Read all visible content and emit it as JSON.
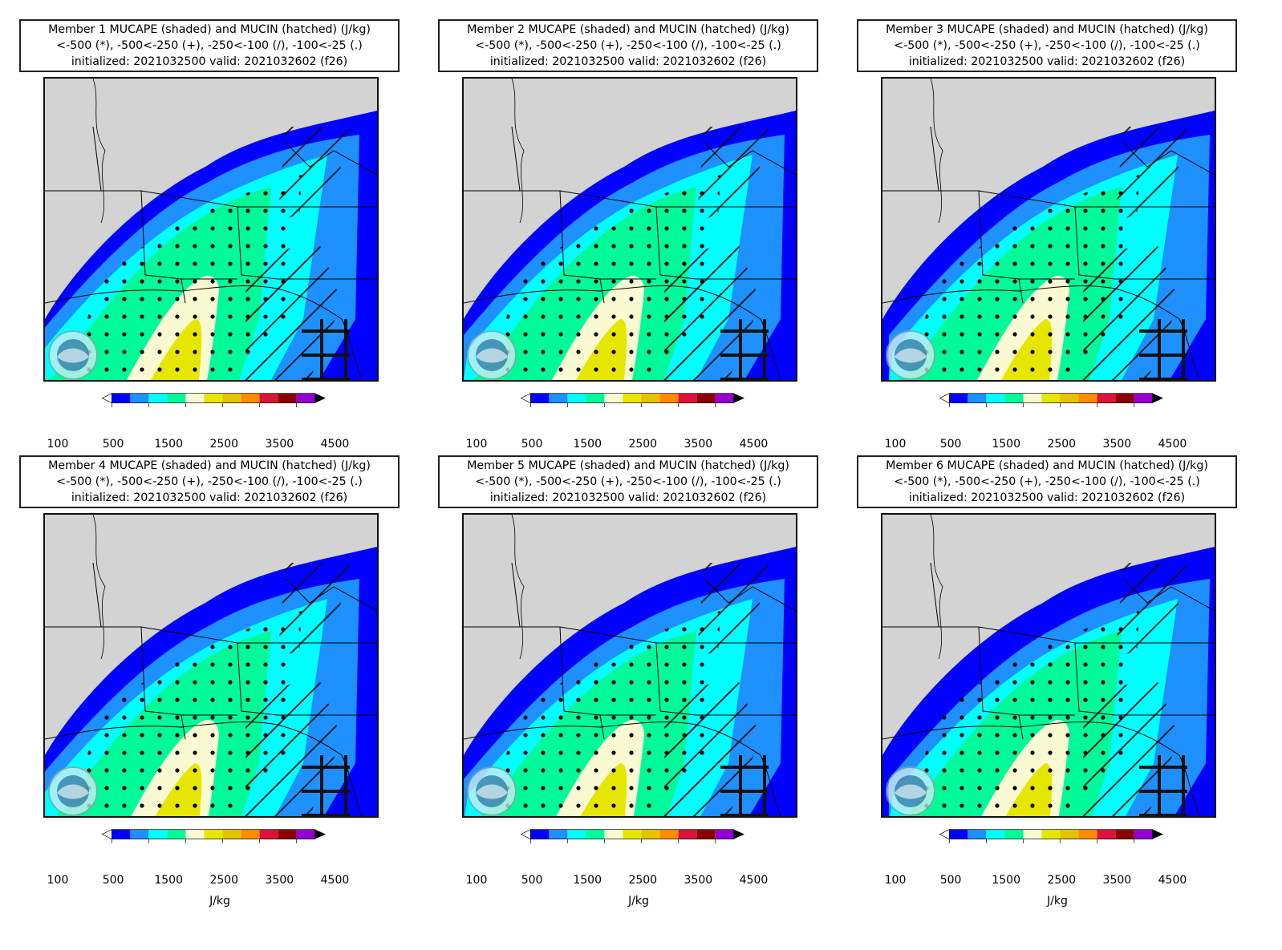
{
  "figure": {
    "panels": [
      {
        "member": "Member 1",
        "title_line1": "Member 1 MUCAPE (shaded) and MUCIN (hatched) (J/kg)"
      },
      {
        "member": "Member 2",
        "title_line1": "Member 2 MUCAPE (shaded) and MUCIN (hatched) (J/kg)"
      },
      {
        "member": "Member 3",
        "title_line1": "Member 3 MUCAPE (shaded) and MUCIN (hatched) (J/kg)"
      },
      {
        "member": "Member 4",
        "title_line1": "Member 4 MUCAPE (shaded) and MUCIN (hatched) (J/kg)"
      },
      {
        "member": "Member 5",
        "title_line1": "Member 5 MUCAPE (shaded) and MUCIN (hatched) (J/kg)"
      },
      {
        "member": "Member 6",
        "title_line1": "Member 6 MUCAPE (shaded) and MUCIN (hatched) (J/kg)"
      }
    ],
    "title_line2": "<-500 (*), -500<-250 (+), -250<-100 (/), -100<-25 (.)",
    "title_line3": "initialized: 2021032500 valid: 2021032602 (f26)",
    "colorbar": {
      "tick_labels": [
        "100",
        "500",
        "1500",
        "2500",
        "3500",
        "4500"
      ],
      "colors": [
        "#0000ff",
        "#1e90ff",
        "#00ffff",
        "#00fa9a",
        "#fafad2",
        "#e6e600",
        "#e6c200",
        "#ff8c00",
        "#dc143c",
        "#8b0000",
        "#9400d3"
      ],
      "unit": "J/kg"
    },
    "logo": "noaa-logo",
    "map_colors": {
      "land": "#d3d3d3",
      "water": "#ffffff",
      "border": "#000000"
    }
  }
}
